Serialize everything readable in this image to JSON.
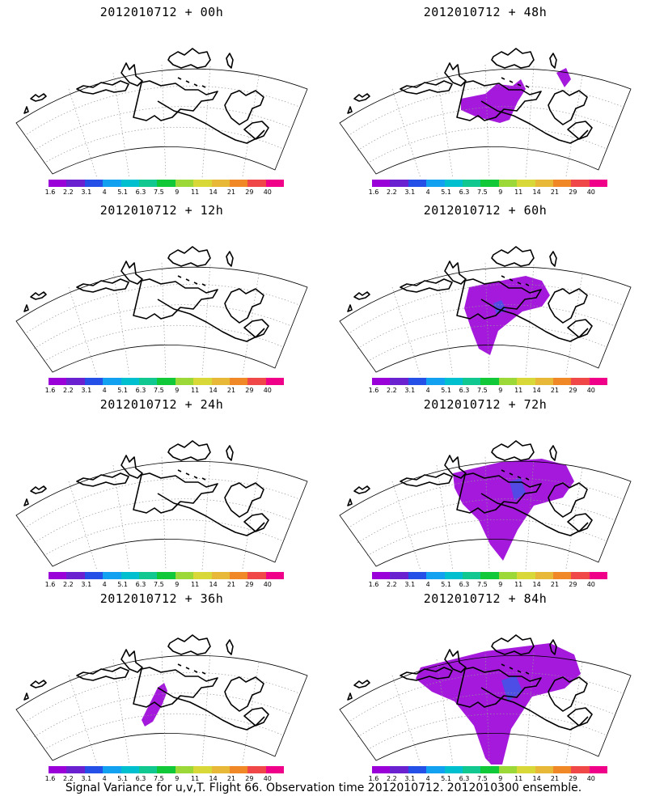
{
  "colorbar": {
    "colors": [
      "#9a00d8",
      "#6a22d0",
      "#2450e8",
      "#12a0f0",
      "#00c0d0",
      "#10c890",
      "#10c838",
      "#9cd838",
      "#d8d838",
      "#e8b838",
      "#f08828",
      "#f04848",
      "#f00088"
    ],
    "labels": [
      "1.6",
      "2.2",
      "3.1",
      "4",
      "5.1",
      "6.3",
      "7.5",
      "9",
      "11",
      "14",
      "21",
      "29",
      "40"
    ]
  },
  "panels": [
    {
      "title": "2012010712 + 00h",
      "fill": "none"
    },
    {
      "title": "2012010712 + 48h",
      "fill": "low"
    },
    {
      "title": "2012010712 + 12h",
      "fill": "none"
    },
    {
      "title": "2012010712 + 60h",
      "fill": "medium"
    },
    {
      "title": "2012010712 + 24h",
      "fill": "none"
    },
    {
      "title": "2012010712 + 72h",
      "fill": "high"
    },
    {
      "title": "2012010712 + 36h",
      "fill": "small"
    },
    {
      "title": "2012010712 + 84h",
      "fill": "highest"
    }
  ],
  "footer": "Signal Variance for u,v,T. Flight 66. Observation time 2012010712. 2012010300 ensemble."
}
